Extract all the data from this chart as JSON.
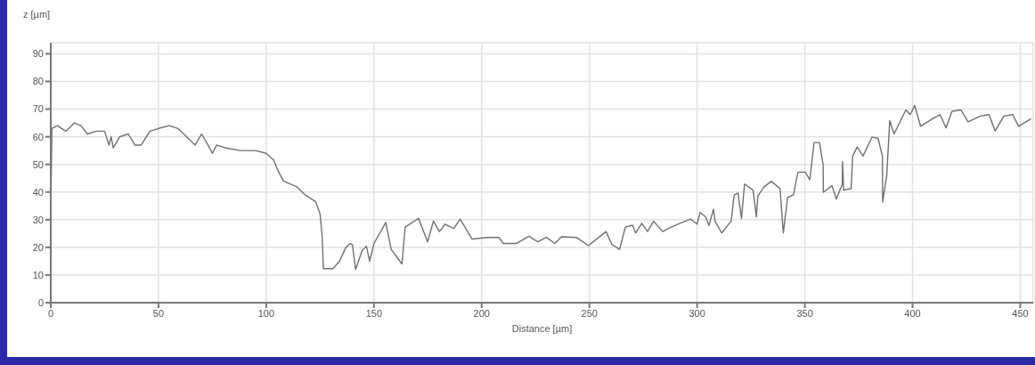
{
  "chart_data": {
    "type": "line",
    "xlabel": "Distance [µm]",
    "ylabel": "z [µm]",
    "color": "#707070",
    "x": [
      0,
      0.5,
      3,
      7,
      11,
      14,
      17,
      21,
      25,
      27,
      28,
      29,
      32,
      36,
      39,
      42,
      46,
      50,
      55,
      59,
      63,
      67,
      70,
      73,
      75,
      77,
      81,
      88,
      95,
      100,
      103.5,
      105.5,
      108,
      114,
      118,
      123,
      125,
      126,
      126.5,
      131,
      134,
      137,
      139,
      140,
      141.5,
      144.5,
      146.5,
      148,
      150,
      155.5,
      158,
      163,
      164.5,
      170.7,
      174.9,
      177.6,
      180.4,
      183,
      187,
      190,
      195.6,
      202.5,
      208,
      210,
      216,
      222,
      226,
      230,
      234,
      237,
      244,
      249.5,
      257.7,
      260.5,
      264,
      266.7,
      270,
      271.5,
      274.3,
      277,
      279.8,
      284,
      288,
      292,
      297,
      300,
      301.4,
      304,
      305.5,
      307.6,
      308.3,
      311.4,
      315.8,
      317.2,
      319,
      320.6,
      322,
      326,
      327.5,
      328.2,
      331,
      334.4,
      338.5,
      340,
      342,
      344.7,
      346.8,
      350.2,
      352.3,
      354.3,
      356.8,
      358.5,
      358.6,
      362.6,
      364.6,
      367.4,
      367.5,
      368,
      371.5,
      372.2,
      374.3,
      377,
      381.2,
      384,
      386,
      386.1,
      388,
      389.4,
      391.4,
      396.9,
      398.9,
      401,
      403.7,
      409.3,
      412.8,
      415.5,
      418.3,
      422.4,
      425.8,
      431.4,
      435.5,
      438.3,
      442.4,
      446.5,
      449.2,
      455
    ],
    "values": [
      32,
      63,
      64,
      62,
      65,
      64,
      61,
      62,
      62,
      57,
      60,
      56,
      60,
      61,
      57,
      57,
      62,
      63,
      64,
      63,
      60,
      57,
      61,
      57,
      54,
      57,
      56,
      55,
      55,
      54,
      51.5,
      47.7,
      44,
      42,
      39,
      36.5,
      32,
      23.6,
      12.3,
      12.3,
      15,
      20,
      21.4,
      21,
      12,
      18.8,
      20.4,
      15,
      21.4,
      29,
      19.3,
      14,
      27.3,
      30.5,
      22,
      29.5,
      25.7,
      28.4,
      26.8,
      30.2,
      23,
      23.6,
      23.6,
      21.4,
      21.4,
      24,
      22,
      23.6,
      21.4,
      23.8,
      23.6,
      20.6,
      25.7,
      21,
      19.3,
      27.3,
      28,
      25.2,
      28.7,
      25.7,
      29.5,
      25.7,
      27.3,
      28.7,
      30.2,
      28.4,
      32.7,
      31,
      27.9,
      33.8,
      29.5,
      25.2,
      29.5,
      39,
      39.6,
      30.5,
      42.9,
      40.7,
      31,
      38.6,
      41.8,
      43.9,
      41.3,
      25.2,
      38,
      39,
      47.2,
      47.2,
      44.5,
      57.9,
      57.9,
      49.8,
      39.9,
      42.3,
      37.5,
      42.9,
      51,
      40.7,
      41.3,
      53,
      56.3,
      53,
      59.9,
      59.4,
      53,
      36.4,
      45.9,
      65.8,
      61,
      69.7,
      68,
      71.3,
      63.8,
      66.5,
      68,
      63.2,
      69.2,
      69.7,
      65.4,
      67.5,
      68,
      62.1,
      67.5,
      68,
      63.8,
      66.5
    ],
    "xlim": [
      0,
      456
    ],
    "ylim": [
      0,
      94
    ],
    "xticks": [
      0,
      50,
      100,
      150,
      200,
      250,
      300,
      350,
      400,
      450
    ],
    "yticks": [
      0,
      10,
      20,
      30,
      40,
      50,
      60,
      70,
      80,
      90
    ],
    "grid": true
  }
}
